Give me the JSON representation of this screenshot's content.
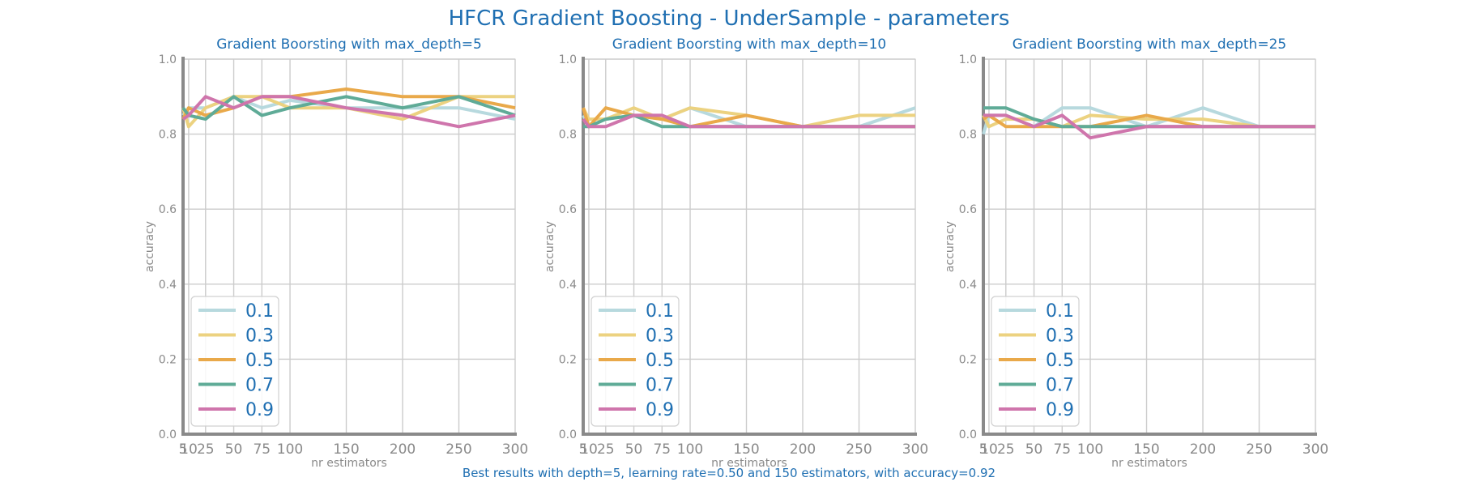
{
  "title": "HFCR Gradient Boosting - UnderSample - parameters",
  "footer": "Best results with depth=5, learning rate=0.50 and 150 estimators, with accuracy=0.92",
  "colors": {
    "0.1": "#b7d9de",
    "0.3": "#ecd280",
    "0.5": "#e9a94a",
    "0.7": "#5fab97",
    "0.9": "#cf75ac",
    "title": "#1f6fb2",
    "grid": "#cccccc",
    "axis": "#8a8a8a"
  },
  "chart_data": [
    {
      "type": "line",
      "title": "Gradient Boorsting with max_depth=5",
      "xlabel": "nr estimators",
      "ylabel": "accuracy",
      "xlim": [
        5,
        300
      ],
      "ylim": [
        0.0,
        1.0
      ],
      "x": [
        5,
        10,
        25,
        50,
        75,
        100,
        150,
        200,
        250,
        300
      ],
      "xticks": [
        "5",
        "10",
        "25",
        "50",
        "75",
        "100",
        "150",
        "200",
        "250",
        "300"
      ],
      "yticks": [
        "0.0",
        "0.2",
        "0.4",
        "0.6",
        "0.8",
        "1.0"
      ],
      "grid": true,
      "legend": "lower left",
      "series": [
        {
          "name": "0.1",
          "values": [
            0.85,
            0.87,
            0.87,
            0.9,
            0.87,
            0.89,
            0.87,
            0.87,
            0.87,
            0.84
          ]
        },
        {
          "name": "0.3",
          "values": [
            0.87,
            0.82,
            0.87,
            0.9,
            0.9,
            0.87,
            0.87,
            0.84,
            0.9,
            0.9
          ]
        },
        {
          "name": "0.5",
          "values": [
            0.84,
            0.87,
            0.85,
            0.87,
            0.9,
            0.9,
            0.92,
            0.9,
            0.9,
            0.87
          ]
        },
        {
          "name": "0.7",
          "values": [
            0.87,
            0.85,
            0.84,
            0.9,
            0.85,
            0.87,
            0.9,
            0.87,
            0.9,
            0.85
          ]
        },
        {
          "name": "0.9",
          "values": [
            0.84,
            0.85,
            0.9,
            0.87,
            0.9,
            0.9,
            0.87,
            0.85,
            0.82,
            0.85
          ]
        }
      ]
    },
    {
      "type": "line",
      "title": "Gradient Boorsting with max_depth=10",
      "xlabel": "nr estimators",
      "ylabel": "accuracy",
      "xlim": [
        5,
        300
      ],
      "ylim": [
        0.0,
        1.0
      ],
      "x": [
        5,
        10,
        25,
        50,
        75,
        100,
        150,
        200,
        250,
        300
      ],
      "xticks": [
        "5",
        "10",
        "25",
        "50",
        "75",
        "100",
        "150",
        "200",
        "250",
        "300"
      ],
      "yticks": [
        "0.0",
        "0.2",
        "0.4",
        "0.6",
        "0.8",
        "1.0"
      ],
      "grid": true,
      "legend": "lower left",
      "series": [
        {
          "name": "0.1",
          "values": [
            0.85,
            0.82,
            0.84,
            0.85,
            0.84,
            0.87,
            0.82,
            0.82,
            0.82,
            0.87
          ]
        },
        {
          "name": "0.3",
          "values": [
            0.87,
            0.84,
            0.84,
            0.87,
            0.84,
            0.87,
            0.85,
            0.82,
            0.85,
            0.85
          ]
        },
        {
          "name": "0.5",
          "values": [
            0.87,
            0.82,
            0.87,
            0.85,
            0.84,
            0.82,
            0.85,
            0.82,
            0.82,
            0.82
          ]
        },
        {
          "name": "0.7",
          "values": [
            0.82,
            0.82,
            0.84,
            0.85,
            0.82,
            0.82,
            0.82,
            0.82,
            0.82,
            0.82
          ]
        },
        {
          "name": "0.9",
          "values": [
            0.84,
            0.82,
            0.82,
            0.85,
            0.85,
            0.82,
            0.82,
            0.82,
            0.82,
            0.82
          ]
        }
      ]
    },
    {
      "type": "line",
      "title": "Gradient Boorsting with max_depth=25",
      "xlabel": "nr estimators",
      "ylabel": "accuracy",
      "xlim": [
        5,
        300
      ],
      "ylim": [
        0.0,
        1.0
      ],
      "x": [
        5,
        10,
        25,
        50,
        75,
        100,
        150,
        200,
        250,
        300
      ],
      "xticks": [
        "5",
        "10",
        "25",
        "50",
        "75",
        "100",
        "150",
        "200",
        "250",
        "300"
      ],
      "yticks": [
        "0.0",
        "0.2",
        "0.4",
        "0.6",
        "0.8",
        "1.0"
      ],
      "grid": true,
      "legend": "lower left",
      "series": [
        {
          "name": "0.1",
          "values": [
            0.8,
            0.85,
            0.85,
            0.82,
            0.87,
            0.87,
            0.82,
            0.87,
            0.82,
            0.82
          ]
        },
        {
          "name": "0.3",
          "values": [
            0.85,
            0.82,
            0.84,
            0.84,
            0.82,
            0.85,
            0.84,
            0.84,
            0.82,
            0.82
          ]
        },
        {
          "name": "0.5",
          "values": [
            0.84,
            0.85,
            0.82,
            0.82,
            0.82,
            0.82,
            0.85,
            0.82,
            0.82,
            0.82
          ]
        },
        {
          "name": "0.7",
          "values": [
            0.87,
            0.87,
            0.87,
            0.84,
            0.82,
            0.82,
            0.82,
            0.82,
            0.82,
            0.82
          ]
        },
        {
          "name": "0.9",
          "values": [
            0.85,
            0.85,
            0.85,
            0.82,
            0.85,
            0.79,
            0.82,
            0.82,
            0.82,
            0.82
          ]
        }
      ]
    }
  ]
}
